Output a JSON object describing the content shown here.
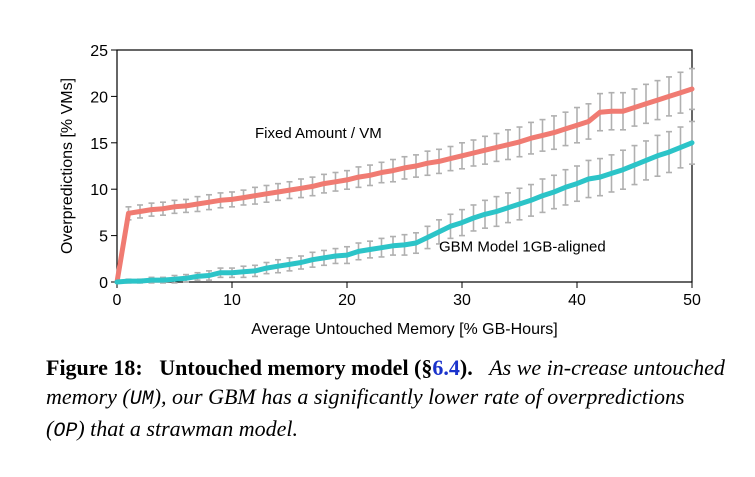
{
  "chart_data": {
    "type": "line",
    "title": "",
    "xlabel": "Average Untouched Memory [% GB-Hours]",
    "ylabel": "Overpredictions [% VMs]",
    "xlim": [
      0,
      50
    ],
    "ylim": [
      0,
      25
    ],
    "xticks": [
      0,
      10,
      20,
      30,
      40,
      50
    ],
    "yticks": [
      0,
      5,
      10,
      15,
      20,
      25
    ],
    "grid": false,
    "legend": "none",
    "series": [
      {
        "name": "Fixed Amount / VM",
        "color": "#f07b72",
        "x": [
          0,
          1,
          2,
          3,
          4,
          5,
          6,
          7,
          8,
          9,
          10,
          11,
          12,
          13,
          14,
          15,
          16,
          17,
          18,
          19,
          20,
          21,
          22,
          23,
          24,
          25,
          26,
          27,
          28,
          29,
          30,
          31,
          32,
          33,
          34,
          35,
          36,
          37,
          38,
          39,
          40,
          41,
          42,
          43,
          44,
          45,
          46,
          47,
          48,
          49,
          50
        ],
        "y": [
          0,
          7.4,
          7.6,
          7.8,
          7.9,
          8.1,
          8.2,
          8.4,
          8.6,
          8.8,
          8.9,
          9.1,
          9.3,
          9.5,
          9.7,
          9.9,
          10.1,
          10.3,
          10.6,
          10.8,
          11.0,
          11.3,
          11.5,
          11.8,
          12.0,
          12.3,
          12.5,
          12.8,
          13.0,
          13.3,
          13.6,
          13.9,
          14.2,
          14.5,
          14.8,
          15.1,
          15.5,
          15.8,
          16.1,
          16.5,
          16.9,
          17.3,
          18.3,
          18.4,
          18.4,
          18.8,
          19.2,
          19.6,
          20.0,
          20.4,
          20.8
        ],
        "err": [
          0,
          0.7,
          0.7,
          0.7,
          0.7,
          0.7,
          0.7,
          0.8,
          0.8,
          0.8,
          0.8,
          0.8,
          0.9,
          0.9,
          0.9,
          0.9,
          1.0,
          1.0,
          1.0,
          1.0,
          1.0,
          1.1,
          1.1,
          1.1,
          1.2,
          1.2,
          1.2,
          1.3,
          1.3,
          1.3,
          1.4,
          1.4,
          1.5,
          1.5,
          1.6,
          1.6,
          1.7,
          1.7,
          1.8,
          1.8,
          1.9,
          1.9,
          2.0,
          2.0,
          2.0,
          2.0,
          2.1,
          2.1,
          2.1,
          2.2,
          2.2
        ]
      },
      {
        "name": "GBM Model 1GB-aligned",
        "color": "#2cc4c8",
        "x": [
          0,
          1,
          2,
          3,
          4,
          5,
          6,
          7,
          8,
          9,
          10,
          11,
          12,
          13,
          14,
          15,
          16,
          17,
          18,
          19,
          20,
          21,
          22,
          23,
          24,
          25,
          26,
          27,
          28,
          29,
          30,
          31,
          32,
          33,
          34,
          35,
          36,
          37,
          38,
          39,
          40,
          41,
          42,
          43,
          44,
          45,
          46,
          47,
          48,
          49,
          50
        ],
        "y": [
          0,
          0.1,
          0.1,
          0.2,
          0.2,
          0.3,
          0.4,
          0.6,
          0.7,
          1.0,
          1.0,
          1.1,
          1.2,
          1.5,
          1.7,
          1.9,
          2.1,
          2.4,
          2.6,
          2.8,
          2.9,
          3.3,
          3.5,
          3.7,
          3.9,
          4.0,
          4.2,
          4.8,
          5.4,
          6.0,
          6.4,
          6.9,
          7.3,
          7.6,
          8.0,
          8.4,
          8.8,
          9.3,
          9.7,
          10.2,
          10.6,
          11.1,
          11.3,
          11.7,
          12.1,
          12.6,
          13.1,
          13.6,
          14.0,
          14.5,
          15.0
        ],
        "err": [
          0,
          0.2,
          0.2,
          0.3,
          0.3,
          0.4,
          0.4,
          0.4,
          0.5,
          0.5,
          0.5,
          0.6,
          0.6,
          0.6,
          0.7,
          0.7,
          0.7,
          0.8,
          0.8,
          0.8,
          0.9,
          0.9,
          0.9,
          1.0,
          1.0,
          1.1,
          1.1,
          1.2,
          1.3,
          1.3,
          1.4,
          1.4,
          1.5,
          1.6,
          1.6,
          1.7,
          1.7,
          1.8,
          1.8,
          1.9,
          1.9,
          2.0,
          2.0,
          2.0,
          2.1,
          2.1,
          2.1,
          2.2,
          2.2,
          2.2,
          2.3
        ]
      }
    ],
    "annotations": [
      {
        "text": "Fixed Amount / VM",
        "x": 12,
        "y": 15.5
      },
      {
        "text": "GBM Model 1GB-aligned",
        "x": 28,
        "y": 3.3
      }
    ],
    "errorbar_color": "#b0b0b0"
  },
  "caption": {
    "number": "Figure 18:",
    "title": "Untouched memory model (§",
    "ref": "6.4",
    "title_end": ").",
    "body_1": "As we in-crease untouched memory (",
    "um": "UM",
    "body_2": "), our GBM has a significantly lower rate of overpredictions (",
    "op": "OP",
    "body_3": ") that a strawman model."
  }
}
